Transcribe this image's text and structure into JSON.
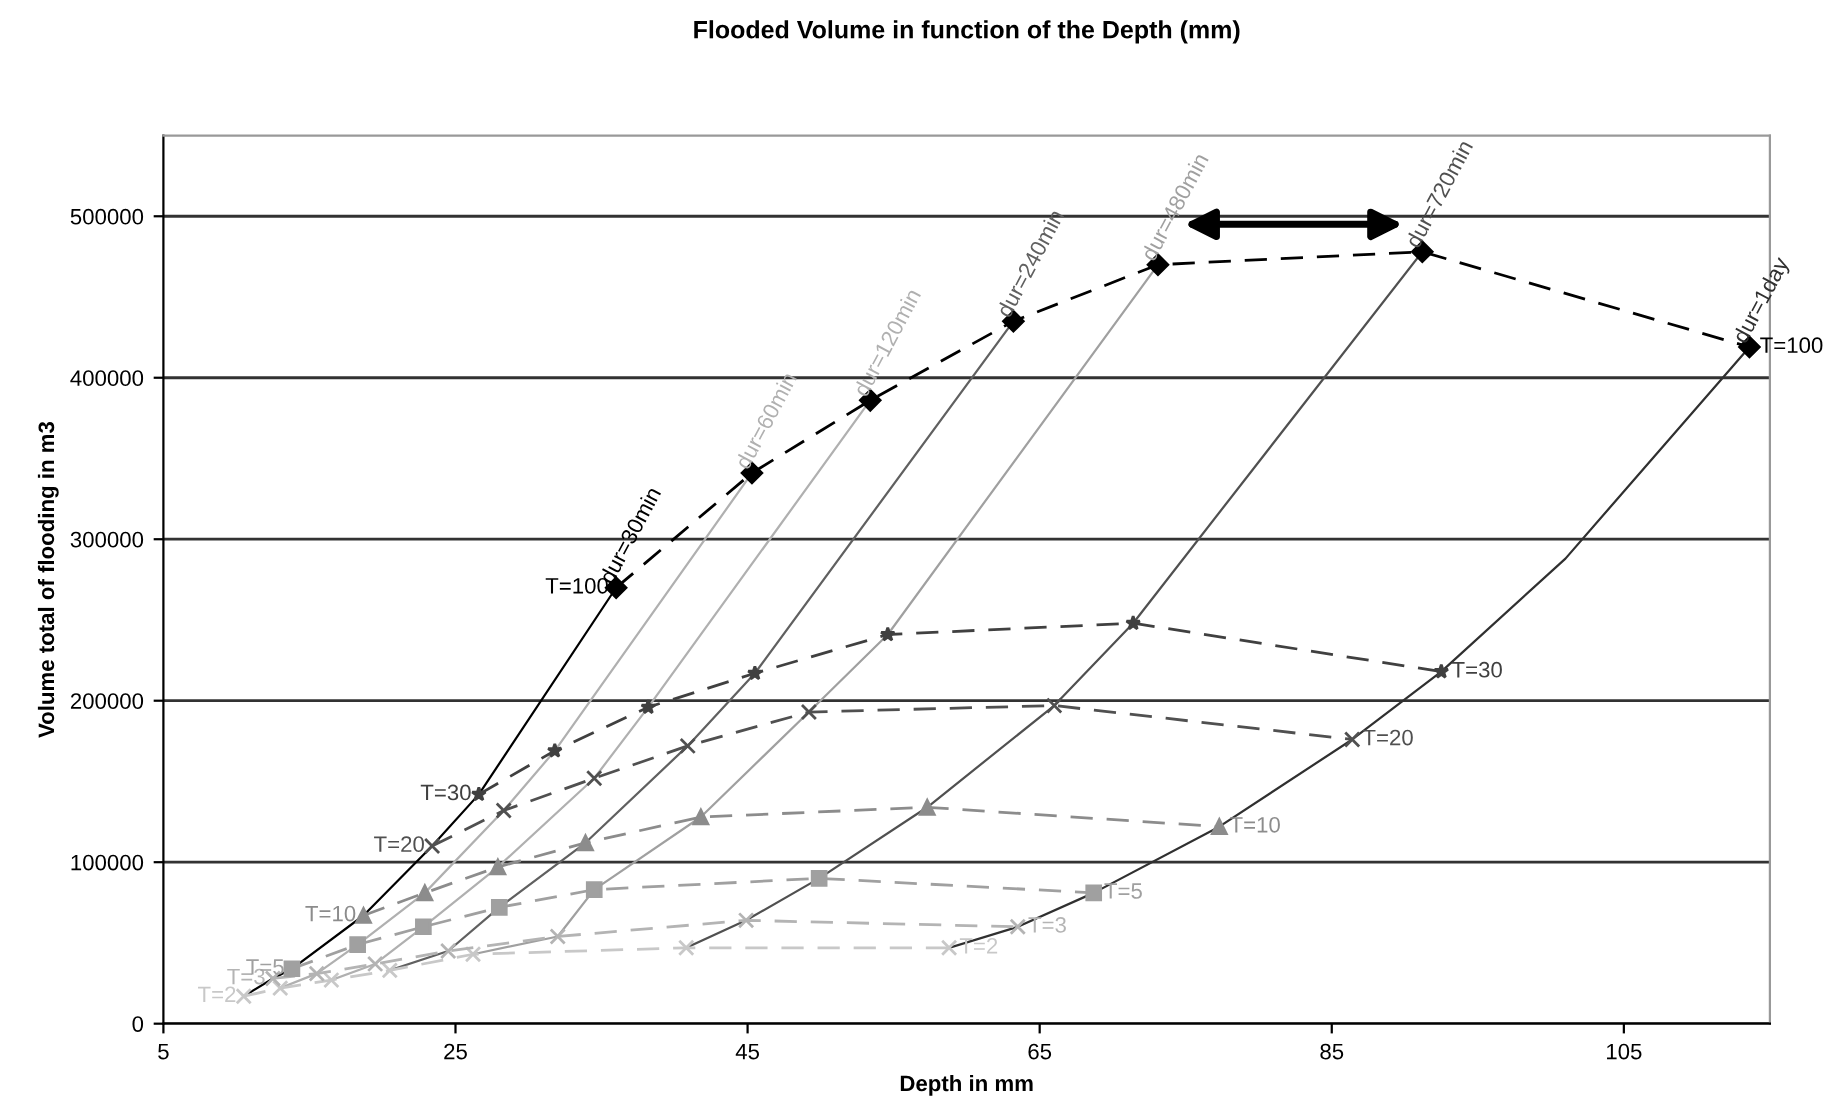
{
  "chart_data": {
    "type": "line",
    "title": "Flooded Volume in function of the Depth (mm)",
    "xlabel": "Depth in mm",
    "ylabel": "Volume total of flooding in m3",
    "xlim": [
      5,
      115
    ],
    "xticks": [
      5,
      25,
      45,
      65,
      85,
      105
    ],
    "ylim": [
      0,
      550000
    ],
    "yticks": [
      0,
      100000,
      200000,
      300000,
      400000,
      500000
    ],
    "grid": "y",
    "legend": false,
    "series": [
      {
        "name": "dur=30min",
        "color": "#000000",
        "line_style": "solid",
        "marker": "none",
        "x": [
          10.5,
          12.5,
          13.8,
          18.7,
          23.4,
          26.6,
          36
        ],
        "values": [
          17000,
          28000,
          34000,
          67000,
          110000,
          142000,
          270000
        ]
      },
      {
        "name": "dur=60min",
        "color": "#b0b0b0",
        "line_style": "solid",
        "marker": "none",
        "x": [
          13,
          15.5,
          18.3,
          22.9,
          28.3,
          31.8,
          45.3
        ],
        "values": [
          22000,
          31000,
          49000,
          81000,
          132000,
          169000,
          341000
        ]
      },
      {
        "name": "dur=120min",
        "color": "#b0b0b0",
        "line_style": "solid",
        "marker": "none",
        "x": [
          16.5,
          19.5,
          22.8,
          27.9,
          34.5,
          38.2,
          53.4
        ],
        "values": [
          27000,
          37000,
          60000,
          97000,
          152000,
          196000,
          386000
        ]
      },
      {
        "name": "dur=240min",
        "color": "#606060",
        "line_style": "solid",
        "marker": "none",
        "x": [
          20.5,
          24.5,
          28,
          33.9,
          40.9,
          45.5,
          63.2
        ],
        "values": [
          33000,
          45000,
          72000,
          112000,
          172000,
          217000,
          435000
        ]
      },
      {
        "name": "dur=480min",
        "color": "#a0a0a0",
        "line_style": "solid",
        "marker": "none",
        "x": [
          26.2,
          32,
          34.5,
          41.8,
          49.2,
          54.6,
          73.1
        ],
        "values": [
          43000,
          54000,
          83000,
          128000,
          193000,
          241000,
          470000
        ]
      },
      {
        "name": "dur=720min",
        "color": "#505050",
        "line_style": "solid",
        "marker": "none",
        "x": [
          40.8,
          44.9,
          49.9,
          57.3,
          66,
          71.4,
          91.2
        ],
        "values": [
          47000,
          64000,
          90000,
          134000,
          197000,
          248000,
          478000
        ]
      },
      {
        "name": "dur=1day",
        "color": "#303030",
        "line_style": "solid",
        "marker": "none",
        "x": [
          58.8,
          63.5,
          68.7,
          77.3,
          86.4,
          92.5,
          101,
          113.6
        ],
        "values": [
          47000,
          60000,
          81000,
          122000,
          176000,
          218000,
          288000,
          419000
        ]
      },
      {
        "name": "T=2",
        "color": "#c8c8c8",
        "line_style": "dashed",
        "marker": "cross",
        "x": [
          10.5,
          13,
          16.5,
          20.5,
          26.2,
          40.8,
          58.8
        ],
        "values": [
          17000,
          22000,
          27000,
          33000,
          43000,
          47000,
          47000
        ]
      },
      {
        "name": "T=3",
        "color": "#b4b4b4",
        "line_style": "dashed",
        "marker": "cross",
        "x": [
          12.5,
          15.5,
          19.5,
          24.5,
          32,
          44.9,
          63.5
        ],
        "values": [
          28000,
          31000,
          37000,
          45000,
          54000,
          64000,
          60000
        ]
      },
      {
        "name": "T=5",
        "color": "#a0a0a0",
        "line_style": "dashed",
        "marker": "square",
        "x": [
          13.8,
          18.3,
          22.8,
          28,
          34.5,
          49.9,
          68.7
        ],
        "values": [
          34000,
          49000,
          60000,
          72000,
          83000,
          90000,
          81000
        ]
      },
      {
        "name": "T=10",
        "color": "#8c8c8c",
        "line_style": "dashed",
        "marker": "triangle",
        "x": [
          18.7,
          22.9,
          27.9,
          33.9,
          41.8,
          57.3,
          77.3
        ],
        "values": [
          67000,
          81000,
          97000,
          112000,
          128000,
          134000,
          122000
        ]
      },
      {
        "name": "T=20",
        "color": "#505050",
        "line_style": "dashed",
        "marker": "cross",
        "x": [
          23.4,
          28.3,
          34.5,
          40.9,
          49.2,
          66,
          86.4
        ],
        "values": [
          110000,
          132000,
          152000,
          172000,
          193000,
          197000,
          176000
        ]
      },
      {
        "name": "T=30",
        "color": "#404040",
        "line_style": "dashed",
        "marker": "star",
        "x": [
          26.6,
          31.8,
          38.2,
          45.5,
          54.6,
          71.4,
          92.5
        ],
        "values": [
          142000,
          169000,
          196000,
          217000,
          241000,
          248000,
          218000
        ]
      },
      {
        "name": "T=100",
        "color": "#000000",
        "line_style": "dashed",
        "marker": "diamond",
        "x": [
          36,
          45.3,
          53.4,
          63.2,
          73.1,
          91.2,
          113.6
        ],
        "values": [
          270000,
          341000,
          386000,
          435000,
          470000,
          478000,
          419000
        ]
      }
    ]
  }
}
